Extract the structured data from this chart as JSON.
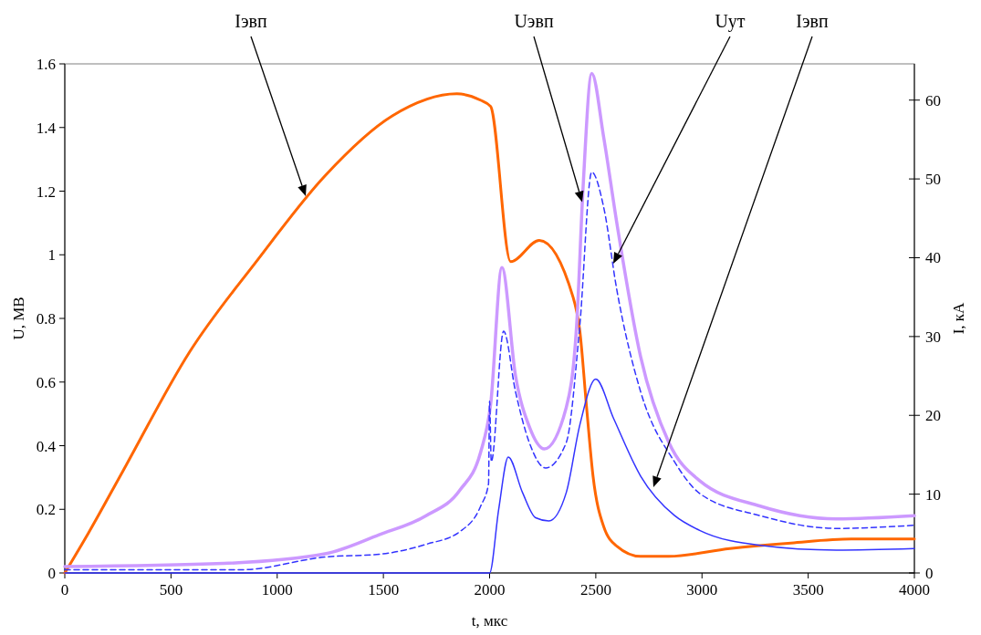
{
  "chart_data": {
    "type": "line",
    "xlabel": "t, мкс",
    "ylabel": "U, МВ",
    "y2label": "I, кА",
    "xlim": [
      0,
      4000
    ],
    "xticks": [
      0,
      500,
      1000,
      1500,
      2000,
      2500,
      3000,
      3500,
      4000
    ],
    "ylim": [
      0,
      1.6
    ],
    "yticks": [
      0,
      0.2,
      0.4,
      0.6,
      0.8,
      1,
      1.2,
      1.4,
      1.6
    ],
    "y2lim": [
      0,
      64.6
    ],
    "y2ticks": [
      0,
      10,
      20,
      30,
      40,
      50,
      60
    ],
    "grid": false,
    "series": [
      {
        "name": "Iэвп",
        "color": "#ff6600",
        "axis": "y2",
        "line_style": "solid",
        "x": [
          0,
          112,
          271,
          589,
          907,
          1225,
          1542,
          1846,
          1957,
          2005,
          2099,
          2234,
          2393,
          2425,
          2457,
          2487,
          2537,
          2599,
          2711,
          2844,
          3131,
          3419,
          3703,
          4000
        ],
        "values": [
          0,
          5.1,
          12.8,
          28.1,
          39.7,
          50.4,
          58.0,
          60.8,
          60.0,
          59.2,
          39.5,
          42.2,
          35.0,
          30.7,
          20.9,
          12.3,
          5.9,
          3.4,
          2.1,
          2.1,
          3.1,
          3.8,
          4.3,
          4.3
        ]
      },
      {
        "name": "Uэвп",
        "color": "#cc99ff",
        "axis": "y",
        "line_style": "solid",
        "x": [
          0,
          748,
          1225,
          1480,
          1701,
          1860,
          1958,
          2005,
          2058,
          2122,
          2187,
          2258,
          2361,
          2410,
          2440,
          2481,
          2537,
          2599,
          2711,
          2844,
          2989,
          3274,
          3632,
          4000
        ],
        "values": [
          0.02,
          0.03,
          0.06,
          0.12,
          0.18,
          0.26,
          0.38,
          0.53,
          0.96,
          0.62,
          0.46,
          0.39,
          0.52,
          0.78,
          1.21,
          1.57,
          1.37,
          1.1,
          0.68,
          0.41,
          0.29,
          0.21,
          0.17,
          0.18
        ]
      },
      {
        "name": "Uут",
        "color": "#3333ff",
        "axis": "y",
        "line_style": "dashed",
        "x": [
          0,
          829,
          1225,
          1496,
          1701,
          1860,
          1958,
          1995,
          2000,
          2008,
          2066,
          2122,
          2187,
          2264,
          2361,
          2425,
          2481,
          2537,
          2599,
          2711,
          2870,
          2989,
          3274,
          3632,
          4000
        ],
        "values": [
          0.01,
          0.01,
          0.05,
          0.06,
          0.09,
          0.13,
          0.21,
          0.28,
          0.54,
          0.35,
          0.76,
          0.57,
          0.41,
          0.33,
          0.41,
          0.78,
          1.26,
          1.15,
          0.89,
          0.57,
          0.35,
          0.25,
          0.18,
          0.14,
          0.15
        ]
      },
      {
        "name": "Iэвп",
        "color": "#3333ff",
        "axis": "y2",
        "line_style": "solid",
        "x": [
          0,
          2000,
          2043,
          2088,
          2155,
          2217,
          2279,
          2361,
          2425,
          2500,
          2584,
          2711,
          2870,
          2989,
          3274,
          3632,
          4000
        ],
        "values": [
          0,
          0,
          8.1,
          14.7,
          10.2,
          7.0,
          6.6,
          10.2,
          18.8,
          24.6,
          19.6,
          12.3,
          7.3,
          5.4,
          3.5,
          2.9,
          3.1
        ]
      }
    ]
  }
}
